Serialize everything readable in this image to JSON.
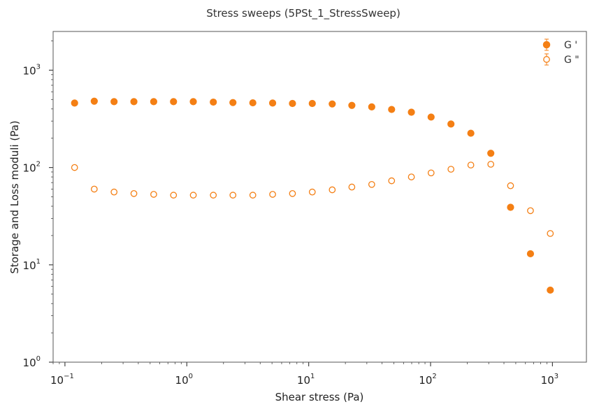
{
  "chart_data": {
    "type": "scatter",
    "title": "Stress sweeps (5PSt_1_StressSweep)",
    "xlabel": "Shear stress (Pa)",
    "ylabel": "Storage and Loss moduli (Pa)",
    "xscale": "log",
    "yscale": "log",
    "xlim": [
      0.08,
      1900
    ],
    "ylim": [
      1,
      2500
    ],
    "grid": false,
    "legend_position": "top-right",
    "x_ticks": [
      {
        "base": "10",
        "exp": "−1"
      },
      {
        "base": "10",
        "exp": "0"
      },
      {
        "base": "10",
        "exp": "1"
      },
      {
        "base": "10",
        "exp": "2"
      },
      {
        "base": "10",
        "exp": "3"
      }
    ],
    "y_ticks": [
      {
        "base": "10",
        "exp": "0"
      },
      {
        "base": "10",
        "exp": "1"
      },
      {
        "base": "10",
        "exp": "2"
      },
      {
        "base": "10",
        "exp": "3"
      }
    ],
    "x": [
      0.12,
      0.174,
      0.253,
      0.368,
      0.535,
      0.778,
      1.13,
      1.65,
      2.39,
      3.48,
      5.06,
      7.36,
      10.7,
      15.6,
      22.6,
      32.9,
      47.9,
      69.6,
      101,
      147,
      214,
      312,
      453,
      660,
      960
    ],
    "series": [
      {
        "name": "G '",
        "marker": "filled-circle",
        "color": "#f47f14",
        "values": [
          460,
          480,
          475,
          475,
          475,
          475,
          475,
          470,
          465,
          462,
          460,
          455,
          455,
          450,
          435,
          420,
          395,
          370,
          330,
          280,
          225,
          140,
          39,
          13,
          5.5
        ]
      },
      {
        "name": "G \"",
        "marker": "open-circle",
        "color": "#f47f14",
        "values": [
          100,
          60,
          56,
          54,
          53,
          52,
          52,
          52,
          52,
          52,
          53,
          54,
          56,
          59,
          63,
          67,
          73,
          80,
          88,
          96,
          106,
          108,
          65,
          36,
          21
        ]
      }
    ]
  }
}
